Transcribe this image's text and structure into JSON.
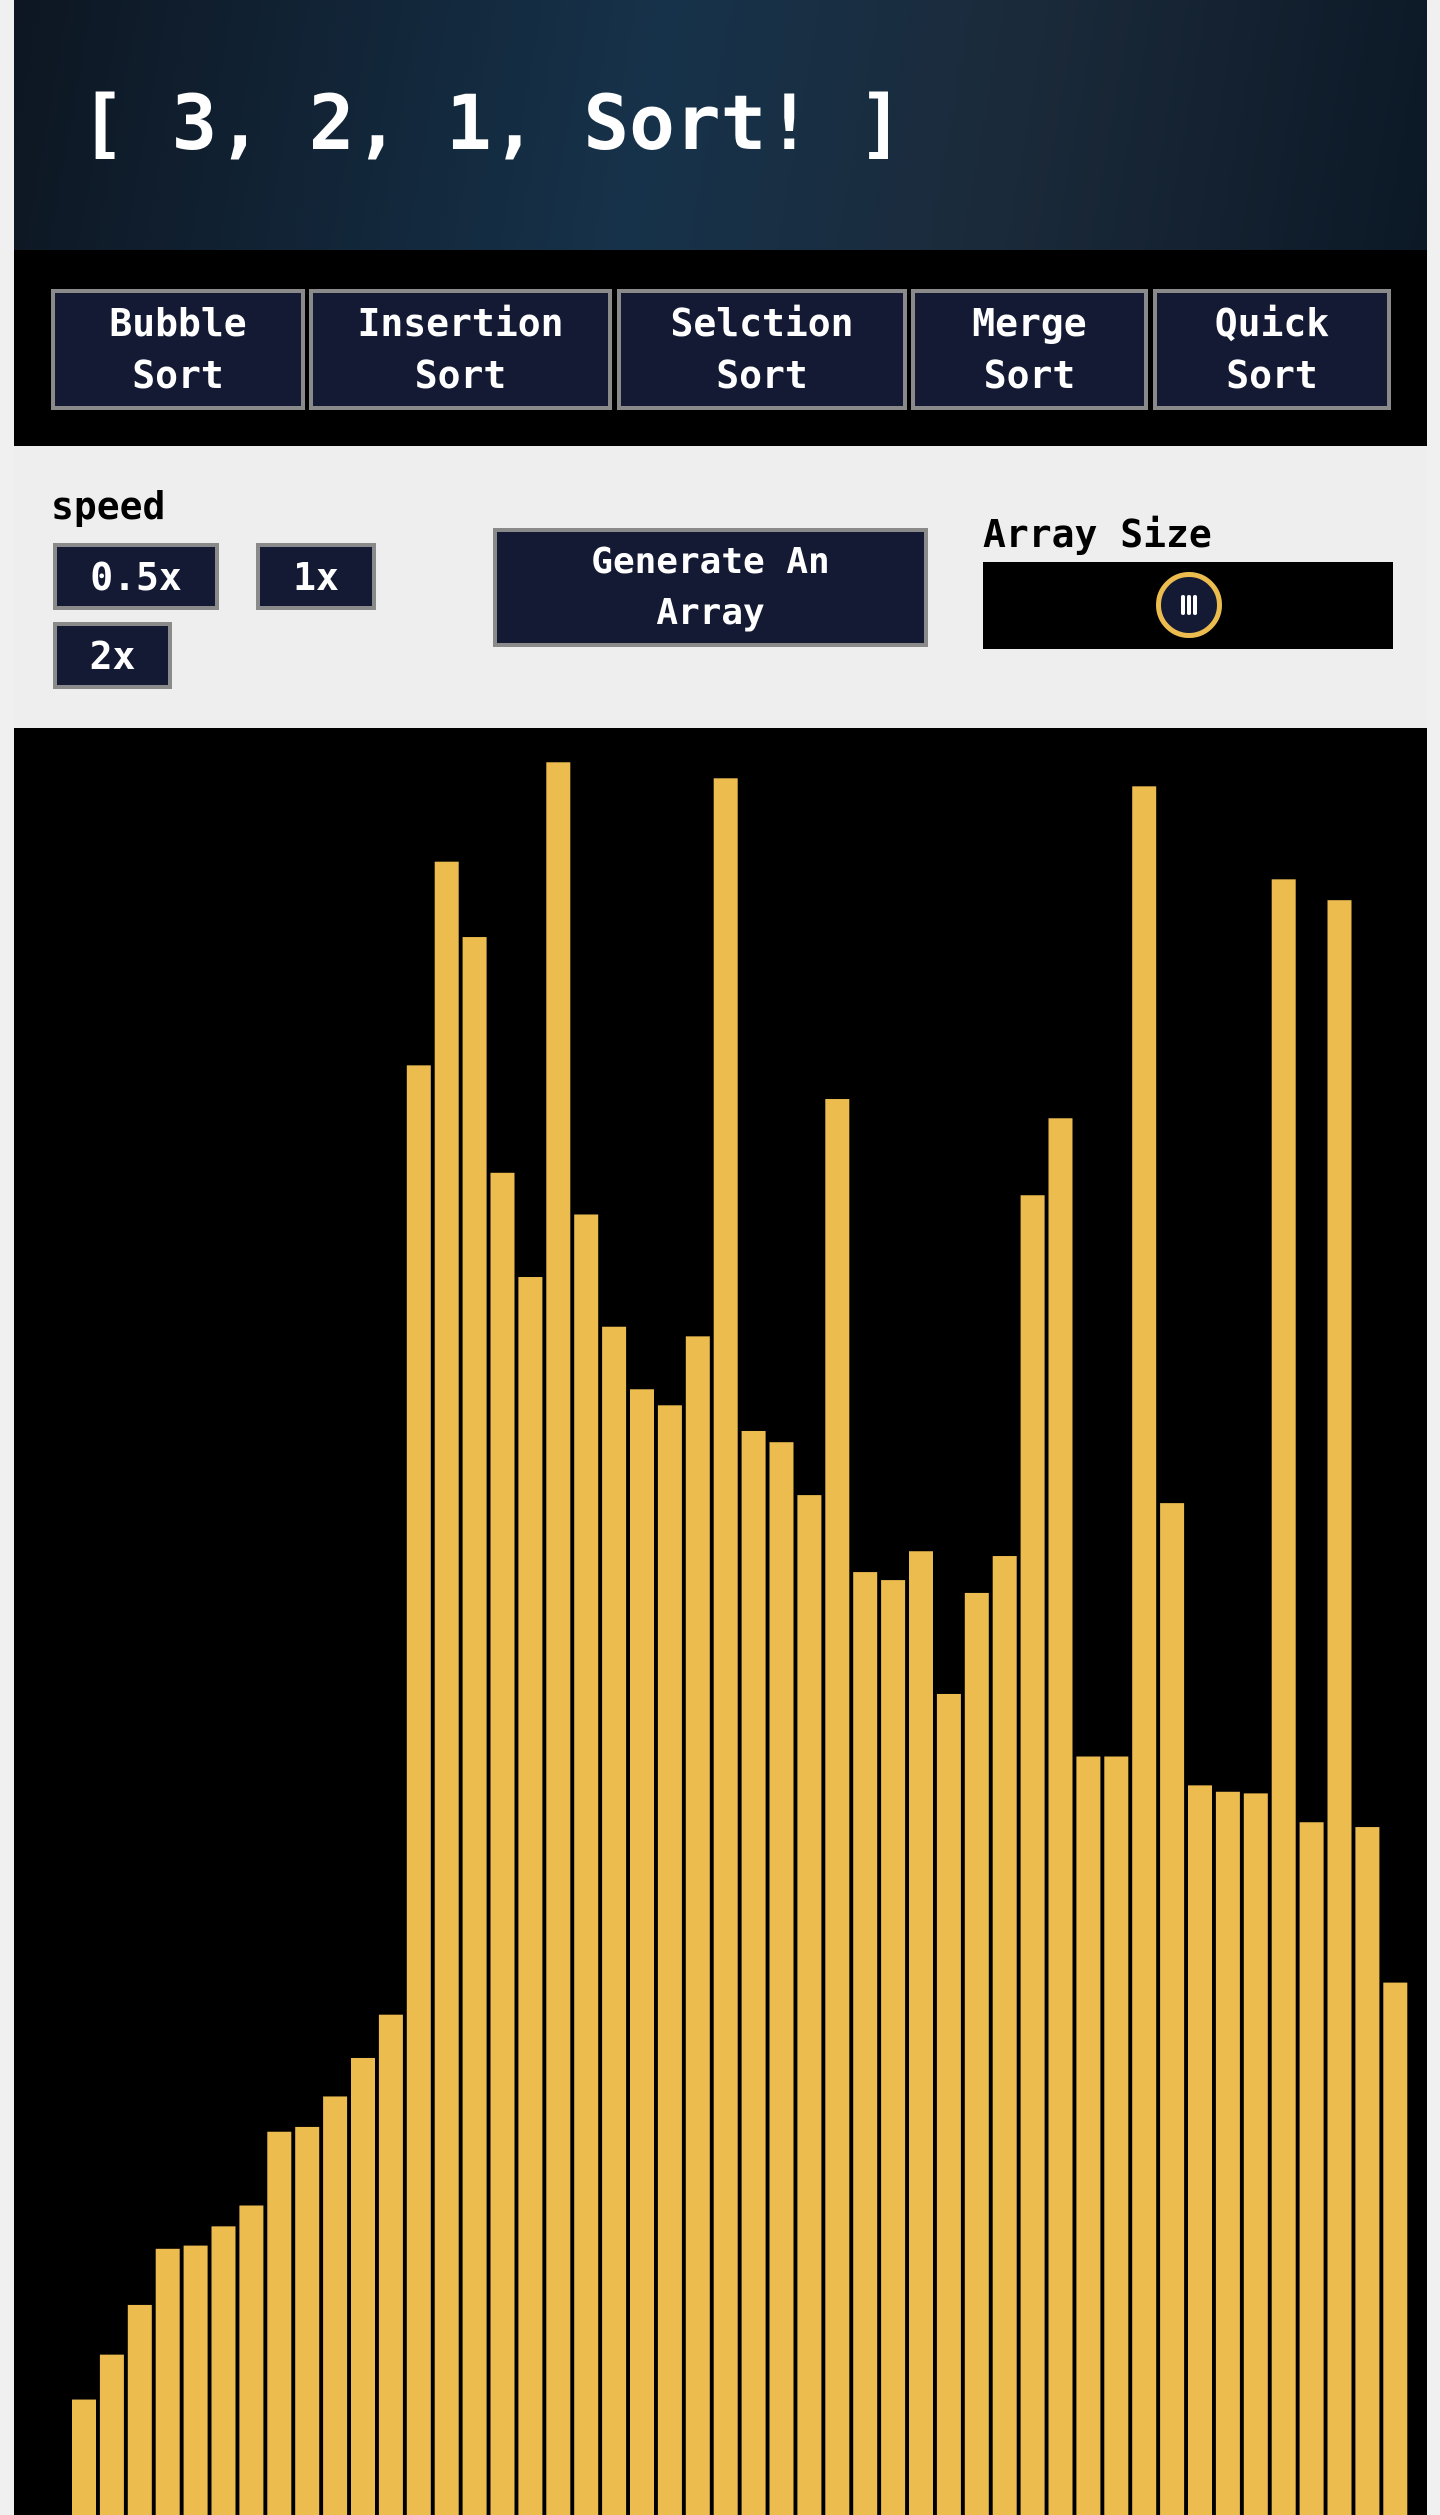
{
  "header": {
    "title": "[ 3, 2, 1, Sort! ]"
  },
  "nav": {
    "buttons": [
      "Bubble Sort",
      "Insertion Sort",
      "Selction Sort",
      "Merge Sort",
      "Quick Sort"
    ],
    "active": 2
  },
  "controls": {
    "speed_label": "speed",
    "speed_buttons": [
      "0.5x",
      "1x",
      "2x"
    ],
    "generate": "Generate An Array",
    "size_label": "Array Size"
  },
  "array": {
    "color": "#ecbc4f",
    "values": [
      72,
      100,
      131,
      166,
      168,
      180,
      193,
      239,
      242,
      261,
      285,
      312,
      904,
      1031,
      984,
      837,
      772,
      1093,
      811,
      741,
      702,
      692,
      735,
      1083,
      676,
      669,
      636,
      883,
      588,
      583,
      601,
      512,
      575,
      598,
      823,
      871,
      473,
      473,
      1078,
      631,
      455,
      451,
      450,
      1020,
      432,
      1007,
      429,
      332
    ]
  }
}
